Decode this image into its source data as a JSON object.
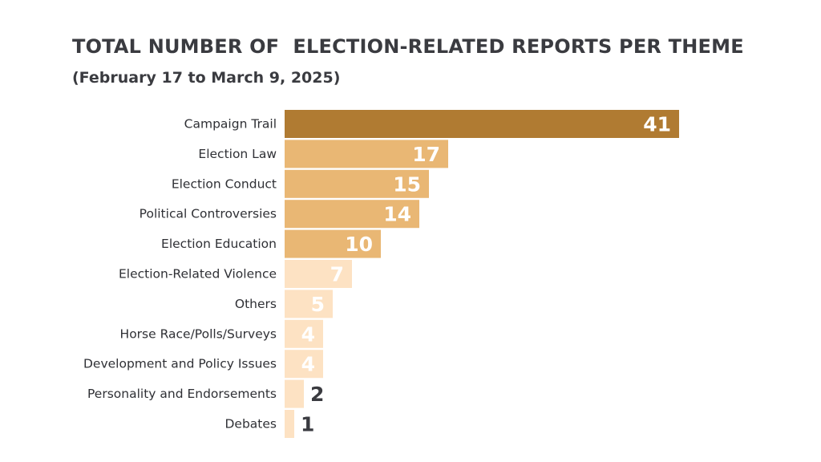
{
  "title": "TOTAL NUMBER OF  ELECTION-RELATED REPORTS PER THEME",
  "subtitle": "(February 17 to March 9, 2025)",
  "colors": {
    "top": "#b07b32",
    "high": "#e9b774",
    "low": "#fde2c3",
    "label_light": "#ffffff",
    "label_dark": "#3a3b40"
  },
  "chart_data": {
    "type": "bar",
    "orientation": "horizontal",
    "title": "TOTAL NUMBER OF  ELECTION-RELATED REPORTS PER THEME",
    "subtitle": "(February 17 to March 9, 2025)",
    "categories": [
      "Campaign Trail",
      "Election Law",
      "Election Conduct",
      "Political Controversies",
      "Election Education",
      "Election-Related Violence",
      "Others",
      "Horse Race/Polls/Surveys",
      "Development and Policy Issues",
      "Personality and Endorsements",
      "Debates"
    ],
    "values": [
      41,
      17,
      15,
      14,
      10,
      7,
      5,
      4,
      4,
      2,
      1
    ],
    "xlim": [
      0,
      41
    ],
    "grid": false,
    "legend": "none",
    "data_labels": true
  }
}
